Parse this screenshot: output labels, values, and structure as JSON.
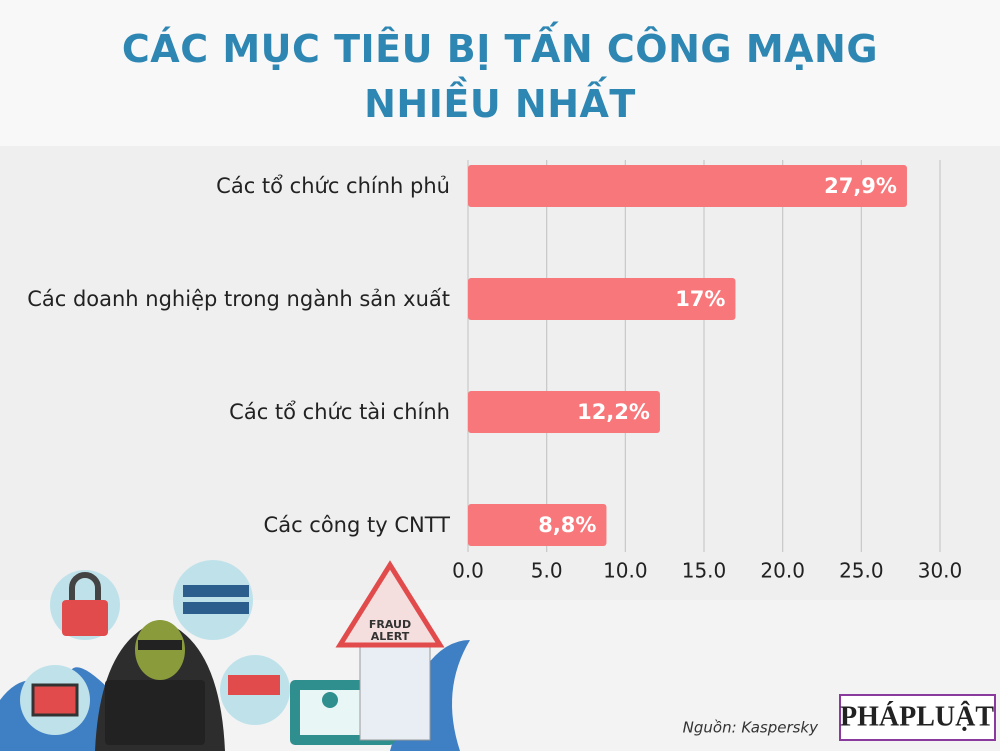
{
  "chart_data": {
    "type": "bar",
    "orientation": "horizontal",
    "title": "CÁC MỤC TIÊU BỊ TẤN CÔNG MẠNG NHIỀU NHẤT",
    "categories": [
      "Các tổ chức chính phủ",
      "Các doanh nghiệp trong ngành sản xuất",
      "Các tổ chức tài chính",
      "Các công ty CNTT"
    ],
    "values": [
      27.9,
      17,
      12.2,
      8.8
    ],
    "value_labels": [
      "27,9%",
      "17%",
      "12,2%",
      "8,8%"
    ],
    "color": "#f7777b",
    "xlim": [
      0,
      30
    ],
    "xticks": [
      {
        "value": 0,
        "label": "0.0"
      },
      {
        "value": 5,
        "label": "5.0"
      },
      {
        "value": 10,
        "label": "10.0"
      },
      {
        "value": 15,
        "label": "15.0"
      },
      {
        "value": 20,
        "label": "20.0"
      },
      {
        "value": 25,
        "label": "25.0"
      },
      {
        "value": 30,
        "label": "30.0"
      }
    ],
    "grid": true,
    "source": "Nguồn: Kaspersky",
    "logo": "PHÁPLUẬT"
  }
}
